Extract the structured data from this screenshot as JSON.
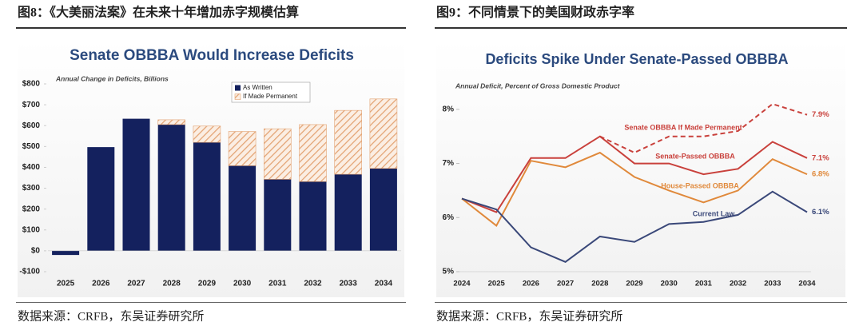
{
  "chart_data": [
    {
      "type": "bar",
      "caption": "图8：《大美丽法案》在未来十年增加赤字规模估算",
      "title": "Senate OBBBA Would Increase Deficits",
      "subtitle": "Annual Change in Deficits, Billions",
      "source": "数据来源：CRFB，东吴证券研究所",
      "categories": [
        "2025",
        "2026",
        "2027",
        "2028",
        "2029",
        "2030",
        "2031",
        "2032",
        "2033",
        "2034"
      ],
      "stacked": true,
      "series": [
        {
          "name": "As Written",
          "color": "#14215e",
          "values": [
            -20,
            497,
            633,
            605,
            520,
            408,
            343,
            332,
            367,
            395
          ]
        },
        {
          "name": "If Made Permanent",
          "color": "#e3a373",
          "pattern": "hatch",
          "values": [
            null,
            null,
            null,
            23,
            78,
            164,
            242,
            273,
            306,
            333
          ]
        }
      ],
      "ylim": [
        -100,
        800
      ],
      "yticks": [
        {
          "value": -100,
          "label": "-$100"
        },
        {
          "value": 0,
          "label": "$0"
        },
        {
          "value": 100,
          "label": "$100"
        },
        {
          "value": 200,
          "label": "$200"
        },
        {
          "value": 300,
          "label": "$300"
        },
        {
          "value": 400,
          "label": "$400"
        },
        {
          "value": 500,
          "label": "$500"
        },
        {
          "value": 600,
          "label": "$600"
        },
        {
          "value": 700,
          "label": "$700"
        },
        {
          "value": 800,
          "label": "$800"
        }
      ],
      "legend": "top-right"
    },
    {
      "type": "line",
      "caption": "图9：不同情景下的美国财政赤字率",
      "title": "Deficits Spike Under Senate-Passed OBBBA",
      "subtitle": "Annual Deficit, Percent of Gross Domestic Product",
      "source": "数据来源：CRFB，东吴证券研究所",
      "x": [
        2024,
        2025,
        2026,
        2027,
        2028,
        2029,
        2030,
        2031,
        2032,
        2033,
        2034
      ],
      "series": [
        {
          "name": "Senate OBBBA If Made Permanent",
          "color": "#c9413c",
          "dash": true,
          "values": [
            null,
            null,
            null,
            null,
            7.5,
            7.2,
            7.5,
            7.5,
            7.6,
            8.1,
            7.9
          ],
          "value_labels": [
            null,
            null,
            null,
            null,
            null,
            null,
            null,
            null,
            null,
            null,
            "7.9%"
          ]
        },
        {
          "name": "Senate-Passed OBBBA",
          "color": "#c9413c",
          "values": [
            6.35,
            6.1,
            7.1,
            7.1,
            7.5,
            7.0,
            7.0,
            6.8,
            6.9,
            7.4,
            7.1
          ],
          "value_labels": [
            null,
            null,
            null,
            null,
            null,
            null,
            null,
            null,
            null,
            null,
            "7.1%"
          ]
        },
        {
          "name": "House-Passed OBBBA",
          "color": "#e0893b",
          "values": [
            6.35,
            5.85,
            7.05,
            6.93,
            7.2,
            6.75,
            6.5,
            6.28,
            6.5,
            7.08,
            6.8
          ],
          "value_labels": [
            null,
            null,
            null,
            null,
            null,
            null,
            null,
            null,
            null,
            null,
            "6.8%"
          ]
        },
        {
          "name": "Current Law",
          "color": "#3a4879",
          "values": [
            6.35,
            6.15,
            5.45,
            5.18,
            5.65,
            5.55,
            5.88,
            5.92,
            6.05,
            6.48,
            6.1
          ],
          "value_labels": [
            null,
            null,
            null,
            null,
            null,
            null,
            null,
            null,
            null,
            null,
            "6.1%"
          ]
        }
      ],
      "xlim": [
        2024,
        2034
      ],
      "xticks": [
        2024,
        2025,
        2026,
        2027,
        2028,
        2029,
        2030,
        2031,
        2032,
        2033,
        2034
      ],
      "ylim": [
        5,
        8.5
      ],
      "yticks": [
        {
          "value": 5,
          "label": "5%"
        },
        {
          "value": 6,
          "label": "6%"
        },
        {
          "value": 7,
          "label": "7%"
        },
        {
          "value": 8,
          "label": "8%"
        }
      ]
    }
  ]
}
